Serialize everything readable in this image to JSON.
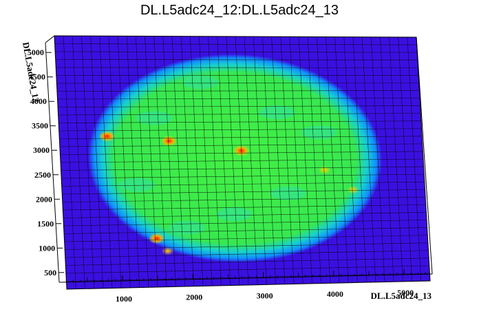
{
  "chart_data": {
    "type": "heatmap",
    "title": "DL.L5adc24_12:DL.L5adc24_13",
    "xlabel": "DL.L5adc24_13",
    "ylabel": "DL.L5adc24_12",
    "xlim": [
      100,
      5400
    ],
    "ylim": [
      300,
      5200
    ],
    "x_ticks": [
      "1000",
      "2000",
      "3000",
      "4000",
      "5000"
    ],
    "y_ticks": [
      "500",
      "1000",
      "1500",
      "2000",
      "2500",
      "3000",
      "3500",
      "4000",
      "4500",
      "5000"
    ],
    "x_tick_values": [
      1000,
      2000,
      3000,
      4000,
      5000
    ],
    "y_tick_values": [
      500,
      1000,
      1500,
      2000,
      2500,
      3000,
      3500,
      4000,
      4500,
      5000
    ],
    "grid": true,
    "colors": {
      "background_bin": "#3a10e0",
      "low": "#00b4ff",
      "mid": "#33ee33",
      "high": "#ffd400",
      "peak": "#ff1800"
    },
    "distribution": {
      "shape": "ellipse",
      "center": [
        2650,
        2800
      ],
      "semi_axis_x": 2150,
      "semi_axis_y": 2050
    },
    "hotspots": [
      {
        "x": 800,
        "y": 3250,
        "level": "peak"
      },
      {
        "x": 1700,
        "y": 3150,
        "level": "peak"
      },
      {
        "x": 2750,
        "y": 2950,
        "level": "peak"
      },
      {
        "x": 1450,
        "y": 1250,
        "level": "peak"
      },
      {
        "x": 1600,
        "y": 1000,
        "level": "high"
      },
      {
        "x": 3950,
        "y": 2550,
        "level": "high"
      },
      {
        "x": 4350,
        "y": 2150,
        "level": "high"
      }
    ]
  }
}
